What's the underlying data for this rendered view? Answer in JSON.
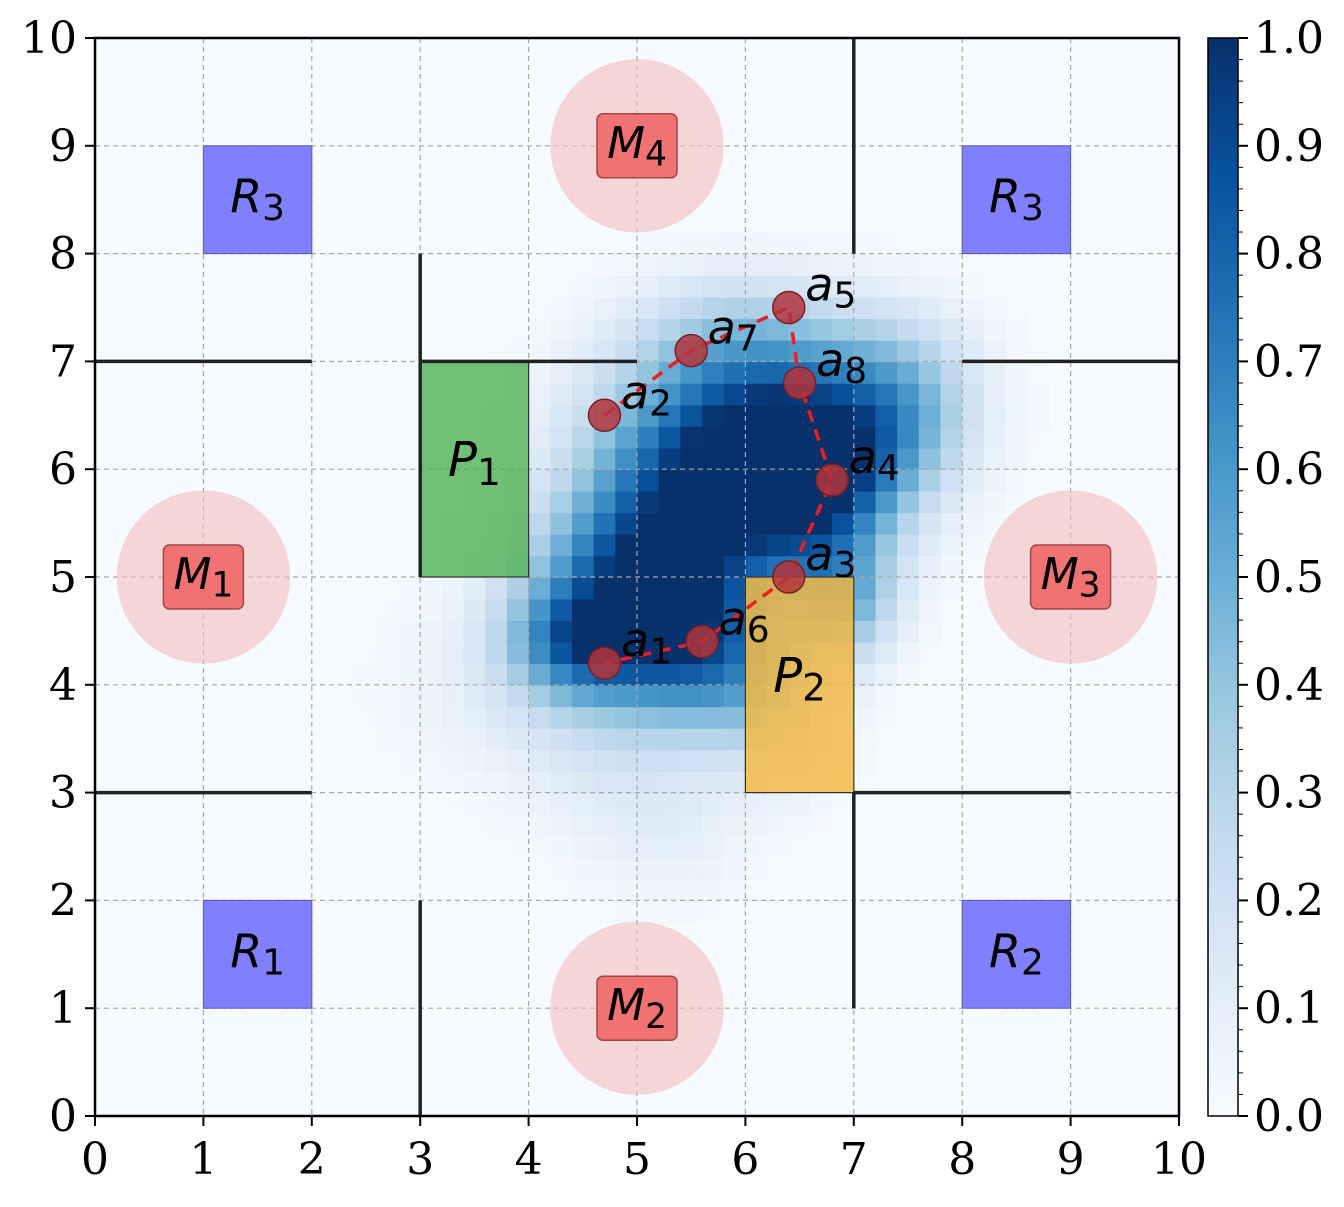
{
  "chart_data": {
    "type": "heatmap",
    "title": "",
    "xlabel": "",
    "ylabel": "",
    "xlim": [
      0,
      10
    ],
    "ylim": [
      0,
      10
    ],
    "xticks": [
      "0",
      "1",
      "2",
      "3",
      "4",
      "5",
      "6",
      "7",
      "8",
      "9",
      "10"
    ],
    "yticks": [
      "0",
      "1",
      "2",
      "3",
      "4",
      "5",
      "6",
      "7",
      "8",
      "9",
      "10"
    ],
    "grid": true,
    "colormap": "Blues",
    "colorbar": {
      "min": 0.0,
      "max": 1.0,
      "ticks": [
        "0.0",
        "0.1",
        "0.2",
        "0.3",
        "0.4",
        "0.5",
        "0.6",
        "0.7",
        "0.8",
        "0.9",
        "1.0"
      ]
    },
    "density_blobs": [
      {
        "x": 5.1,
        "y": 5.0,
        "sx": 0.7,
        "sy": 0.55,
        "w": 0.85
      },
      {
        "x": 6.6,
        "y": 5.9,
        "sx": 0.55,
        "sy": 0.55,
        "w": 0.8
      },
      {
        "x": 6.0,
        "y": 6.4,
        "sx": 0.9,
        "sy": 0.6,
        "w": 0.6
      },
      {
        "x": 4.5,
        "y": 4.4,
        "sx": 0.45,
        "sy": 0.35,
        "w": 0.55
      },
      {
        "x": 5.6,
        "y": 4.3,
        "sx": 0.5,
        "sy": 0.45,
        "w": 0.5
      },
      {
        "x": 5.6,
        "y": 5.8,
        "sx": 0.7,
        "sy": 0.55,
        "w": 0.5
      },
      {
        "x": 6.9,
        "y": 4.8,
        "sx": 0.35,
        "sy": 0.4,
        "w": 0.45
      },
      {
        "x": 7.4,
        "y": 6.6,
        "sx": 0.5,
        "sy": 0.55,
        "w": 0.4
      },
      {
        "x": 6.0,
        "y": 7.2,
        "sx": 0.7,
        "sy": 0.45,
        "w": 0.25
      },
      {
        "x": 5.0,
        "y": 3.6,
        "sx": 0.7,
        "sy": 0.7,
        "w": 0.15
      },
      {
        "x": 4.2,
        "y": 4.0,
        "sx": 0.9,
        "sy": 0.6,
        "w": 0.12
      },
      {
        "x": 6.3,
        "y": 3.8,
        "sx": 0.4,
        "sy": 0.5,
        "w": 0.25
      },
      {
        "x": 5.3,
        "y": 2.5,
        "sx": 0.5,
        "sy": 0.4,
        "w": 0.06
      }
    ],
    "walls": [
      {
        "x1": 0,
        "y1": 7,
        "x2": 2,
        "y2": 7
      },
      {
        "x1": 3,
        "y1": 7,
        "x2": 5,
        "y2": 7
      },
      {
        "x1": 8,
        "y1": 7,
        "x2": 10,
        "y2": 7
      },
      {
        "x1": 0,
        "y1": 3,
        "x2": 2,
        "y2": 3
      },
      {
        "x1": 7,
        "y1": 3,
        "x2": 9,
        "y2": 3
      },
      {
        "x1": 3,
        "y1": 8,
        "x2": 3,
        "y2": 5
      },
      {
        "x1": 3,
        "y1": 2,
        "x2": 3,
        "y2": 0
      },
      {
        "x1": 7,
        "y1": 10,
        "x2": 7,
        "y2": 8
      },
      {
        "x1": 7,
        "y1": 3,
        "x2": 7,
        "y2": 1
      }
    ],
    "rooms": [
      {
        "label": "R",
        "sub": "3",
        "x": 1,
        "y": 8,
        "w": 1,
        "h": 1,
        "color": "#8080ff"
      },
      {
        "label": "R",
        "sub": "3",
        "x": 8,
        "y": 8,
        "w": 1,
        "h": 1,
        "color": "#8080ff"
      },
      {
        "label": "R",
        "sub": "1",
        "x": 1,
        "y": 1,
        "w": 1,
        "h": 1,
        "color": "#8080ff"
      },
      {
        "label": "R",
        "sub": "2",
        "x": 8,
        "y": 1,
        "w": 1,
        "h": 1,
        "color": "#8080ff"
      }
    ],
    "places": [
      {
        "label": "P",
        "sub": "1",
        "x": 3,
        "y": 5,
        "w": 1,
        "h": 2,
        "color": "#4caf50",
        "opacity": 0.78
      },
      {
        "label": "P",
        "sub": "2",
        "x": 6,
        "y": 3,
        "w": 1,
        "h": 2,
        "color": "#f5b942",
        "opacity": 0.82
      }
    ],
    "markers": [
      {
        "label": "M",
        "sub": "4",
        "x": 5,
        "y": 9,
        "r": 0.8
      },
      {
        "label": "M",
        "sub": "1",
        "x": 1,
        "y": 5,
        "r": 0.8
      },
      {
        "label": "M",
        "sub": "3",
        "x": 9,
        "y": 5,
        "r": 0.8
      },
      {
        "label": "M",
        "sub": "2",
        "x": 5,
        "y": 1,
        "r": 0.8
      }
    ],
    "path_order": [
      "a2",
      "a7",
      "a5",
      "a8",
      "a4",
      "a3",
      "a6",
      "a1"
    ],
    "points": [
      {
        "label": "a",
        "sub": "1",
        "x": 4.7,
        "y": 4.2
      },
      {
        "label": "a",
        "sub": "2",
        "x": 4.7,
        "y": 6.5
      },
      {
        "label": "a",
        "sub": "3",
        "x": 6.4,
        "y": 5.0
      },
      {
        "label": "a",
        "sub": "4",
        "x": 6.8,
        "y": 5.9
      },
      {
        "label": "a",
        "sub": "5",
        "x": 6.4,
        "y": 7.5
      },
      {
        "label": "a",
        "sub": "6",
        "x": 5.6,
        "y": 4.4
      },
      {
        "label": "a",
        "sub": "7",
        "x": 5.5,
        "y": 7.1
      },
      {
        "label": "a",
        "sub": "8",
        "x": 6.5,
        "y": 6.8
      }
    ],
    "colors": {
      "path": "#ee1c25",
      "point_fill": "#b0353c",
      "marker_halo": "#f2b8b8",
      "marker_box": "#f07272",
      "wall": "#222222",
      "grid": "#a8a8a8"
    }
  }
}
